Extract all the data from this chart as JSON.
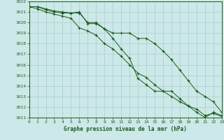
{
  "title": "Graphe pression niveau de la mer (hPa)",
  "bg_color": "#cce8e8",
  "grid_color": "#aacccc",
  "line_color": "#1a5c1a",
  "ylim": [
    1011,
    1022
  ],
  "xlim": [
    0,
    23
  ],
  "yticks": [
    1011,
    1012,
    1013,
    1014,
    1015,
    1016,
    1017,
    1018,
    1019,
    1020,
    1021,
    1022
  ],
  "xticks": [
    0,
    1,
    2,
    3,
    4,
    5,
    6,
    7,
    8,
    9,
    10,
    11,
    12,
    13,
    14,
    15,
    16,
    17,
    18,
    19,
    20,
    21,
    22,
    23
  ],
  "series1": [
    1021.5,
    1021.5,
    1021.3,
    1021.1,
    1021.0,
    1020.9,
    1021.0,
    1019.9,
    1019.9,
    1019.4,
    1018.5,
    1017.5,
    1016.6,
    1014.7,
    1014.1,
    1013.5,
    1013.5,
    1013.5,
    1012.8,
    1012.1,
    1011.5,
    1011.0,
    1011.5,
    1011.2
  ],
  "series2": [
    1021.5,
    1021.5,
    1021.2,
    1021.0,
    1020.9,
    1020.9,
    1020.9,
    1020.0,
    1020.0,
    1019.4,
    1019.0,
    1019.0,
    1019.0,
    1018.5,
    1018.5,
    1018.0,
    1017.3,
    1016.5,
    1015.5,
    1014.5,
    1013.5,
    1013.0,
    1012.5,
    1011.5
  ],
  "series3": [
    1021.5,
    1021.3,
    1021.0,
    1020.8,
    1020.6,
    1020.4,
    1019.5,
    1019.2,
    1018.8,
    1018.0,
    1017.5,
    1016.8,
    1016.0,
    1015.2,
    1014.8,
    1014.1,
    1013.5,
    1013.0,
    1012.5,
    1012.1,
    1011.8,
    1011.2,
    1011.4,
    1011.1
  ]
}
